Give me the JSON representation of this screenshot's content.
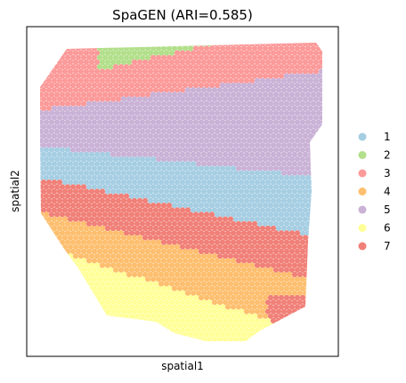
{
  "chart_data": {
    "type": "scatter",
    "title": "SpaGEN (ARI=0.585)",
    "xlabel": "spatial1",
    "ylabel": "spatial2",
    "ticks_visible": false,
    "grid": false,
    "legend": {
      "placement": "right",
      "entries": [
        "1",
        "2",
        "3",
        "4",
        "5",
        "6",
        "7"
      ]
    },
    "clusters": [
      {
        "name": "1",
        "color": "#a6cee3"
      },
      {
        "name": "2",
        "color": "#b2df8a"
      },
      {
        "name": "3",
        "color": "#fb9a99"
      },
      {
        "name": "4",
        "color": "#fdbf6f"
      },
      {
        "name": "5",
        "color": "#cab2d6"
      },
      {
        "name": "6",
        "color": "#ffff99"
      },
      {
        "name": "7",
        "color": "#f08078"
      }
    ]
  }
}
